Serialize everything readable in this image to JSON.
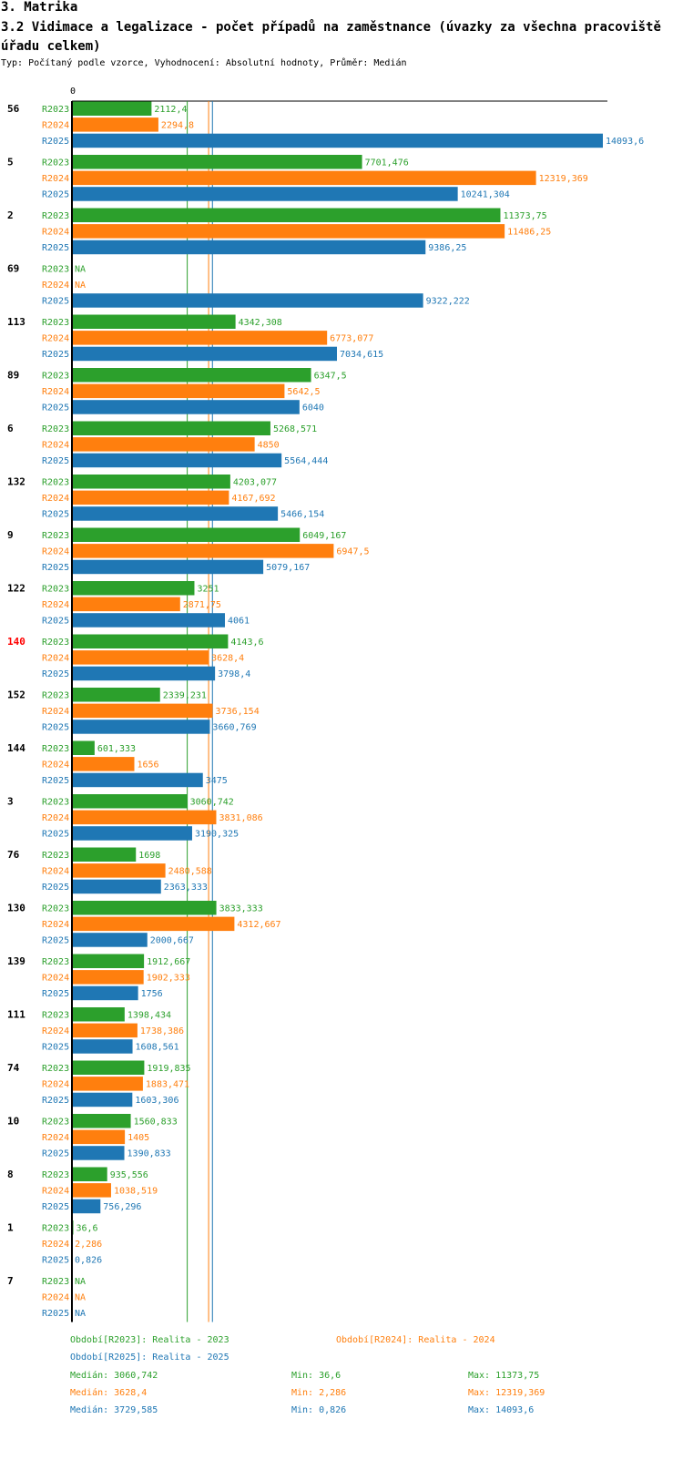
{
  "header": {
    "section": "3. Matrika",
    "title": "3.2 Vidimace a legalizace - počet případů na zaměstnance (úvazky za všechna pracoviště úřadu celkem)",
    "subtitle": "Typ: Počítaný podle vzorce, Vyhodnocení: Absolutní hodnoty, Průměr: Medián"
  },
  "chart_data": {
    "type": "bar",
    "orientation": "horizontal",
    "axis_zero_label": "0",
    "xlim": [
      0,
      14093.6
    ],
    "highlight_category": "140",
    "series": [
      {
        "name": "R2023",
        "color": "#2ca02c",
        "median": 3060.742
      },
      {
        "name": "R2024",
        "color": "#ff7f0e",
        "median": 3628.4
      },
      {
        "name": "R2025",
        "color": "#1f77b4",
        "median": 3729.585
      }
    ],
    "groups": [
      {
        "category": "56",
        "values": [
          2112.4,
          2294.8,
          14093.6
        ],
        "labels": [
          "2112,4",
          "2294,8",
          "14093,6"
        ]
      },
      {
        "category": "5",
        "values": [
          7701.476,
          12319.369,
          10241.304
        ],
        "labels": [
          "7701,476",
          "12319,369",
          "10241,304"
        ]
      },
      {
        "category": "2",
        "values": [
          11373.75,
          11486.25,
          9386.25
        ],
        "labels": [
          "11373,75",
          "11486,25",
          "9386,25"
        ]
      },
      {
        "category": "69",
        "values": [
          null,
          null,
          9322.222
        ],
        "labels": [
          "NA",
          "NA",
          "9322,222"
        ]
      },
      {
        "category": "113",
        "values": [
          4342.308,
          6773.077,
          7034.615
        ],
        "labels": [
          "4342,308",
          "6773,077",
          "7034,615"
        ]
      },
      {
        "category": "89",
        "values": [
          6347.5,
          5642.5,
          6040
        ],
        "labels": [
          "6347,5",
          "5642,5",
          "6040"
        ]
      },
      {
        "category": "6",
        "values": [
          5268.571,
          4850,
          5564.444
        ],
        "labels": [
          "5268,571",
          "4850",
          "5564,444"
        ]
      },
      {
        "category": "132",
        "values": [
          4203.077,
          4167.692,
          5466.154
        ],
        "labels": [
          "4203,077",
          "4167,692",
          "5466,154"
        ]
      },
      {
        "category": "9",
        "values": [
          6049.167,
          6947.5,
          5079.167
        ],
        "labels": [
          "6049,167",
          "6947,5",
          "5079,167"
        ]
      },
      {
        "category": "122",
        "values": [
          3251,
          2871.75,
          4061
        ],
        "labels": [
          "3251",
          "2871,75",
          "4061"
        ]
      },
      {
        "category": "140",
        "values": [
          4143.6,
          3628.4,
          3798.4
        ],
        "labels": [
          "4143,6",
          "3628,4",
          "3798,4"
        ]
      },
      {
        "category": "152",
        "values": [
          2339.231,
          3736.154,
          3660.769
        ],
        "labels": [
          "2339,231",
          "3736,154",
          "3660,769"
        ]
      },
      {
        "category": "144",
        "values": [
          601.333,
          1656,
          3475
        ],
        "labels": [
          "601,333",
          "1656",
          "3475"
        ]
      },
      {
        "category": "3",
        "values": [
          3060.742,
          3831.086,
          3190.325
        ],
        "labels": [
          "3060,742",
          "3831,086",
          "3190,325"
        ]
      },
      {
        "category": "76",
        "values": [
          1698,
          2480.588,
          2363.333
        ],
        "labels": [
          "1698",
          "2480,588",
          "2363,333"
        ]
      },
      {
        "category": "130",
        "values": [
          3833.333,
          4312.667,
          2000.667
        ],
        "labels": [
          "3833,333",
          "4312,667",
          "2000,667"
        ]
      },
      {
        "category": "139",
        "values": [
          1912.667,
          1902.333,
          1756
        ],
        "labels": [
          "1912,667",
          "1902,333",
          "1756"
        ]
      },
      {
        "category": "111",
        "values": [
          1398.434,
          1738.386,
          1608.561
        ],
        "labels": [
          "1398,434",
          "1738,386",
          "1608,561"
        ]
      },
      {
        "category": "74",
        "values": [
          1919.835,
          1883.471,
          1603.306
        ],
        "labels": [
          "1919,835",
          "1883,471",
          "1603,306"
        ]
      },
      {
        "category": "10",
        "values": [
          1560.833,
          1405,
          1390.833
        ],
        "labels": [
          "1560,833",
          "1405",
          "1390,833"
        ]
      },
      {
        "category": "8",
        "values": [
          935.556,
          1038.519,
          756.296
        ],
        "labels": [
          "935,556",
          "1038,519",
          "756,296"
        ]
      },
      {
        "category": "1",
        "values": [
          36.6,
          2.286,
          0.826
        ],
        "labels": [
          "36,6",
          "2,286",
          "0,826"
        ]
      },
      {
        "category": "7",
        "values": [
          null,
          null,
          null
        ],
        "labels": [
          "NA",
          "NA",
          "NA"
        ]
      }
    ]
  },
  "legend": {
    "periods": [
      "Období[R2023]: Realita - 2023",
      "Období[R2024]: Realita - 2024",
      "Období[R2025]: Realita - 2025"
    ],
    "stats": [
      {
        "median": "Medián: 3060,742",
        "min": "Min: 36,6",
        "max": "Max: 11373,75"
      },
      {
        "median": "Medián: 3628,4",
        "min": "Min: 2,286",
        "max": "Max: 12319,369"
      },
      {
        "median": "Medián: 3729,585",
        "min": "Min: 0,826",
        "max": "Max: 14093,6"
      }
    ]
  }
}
